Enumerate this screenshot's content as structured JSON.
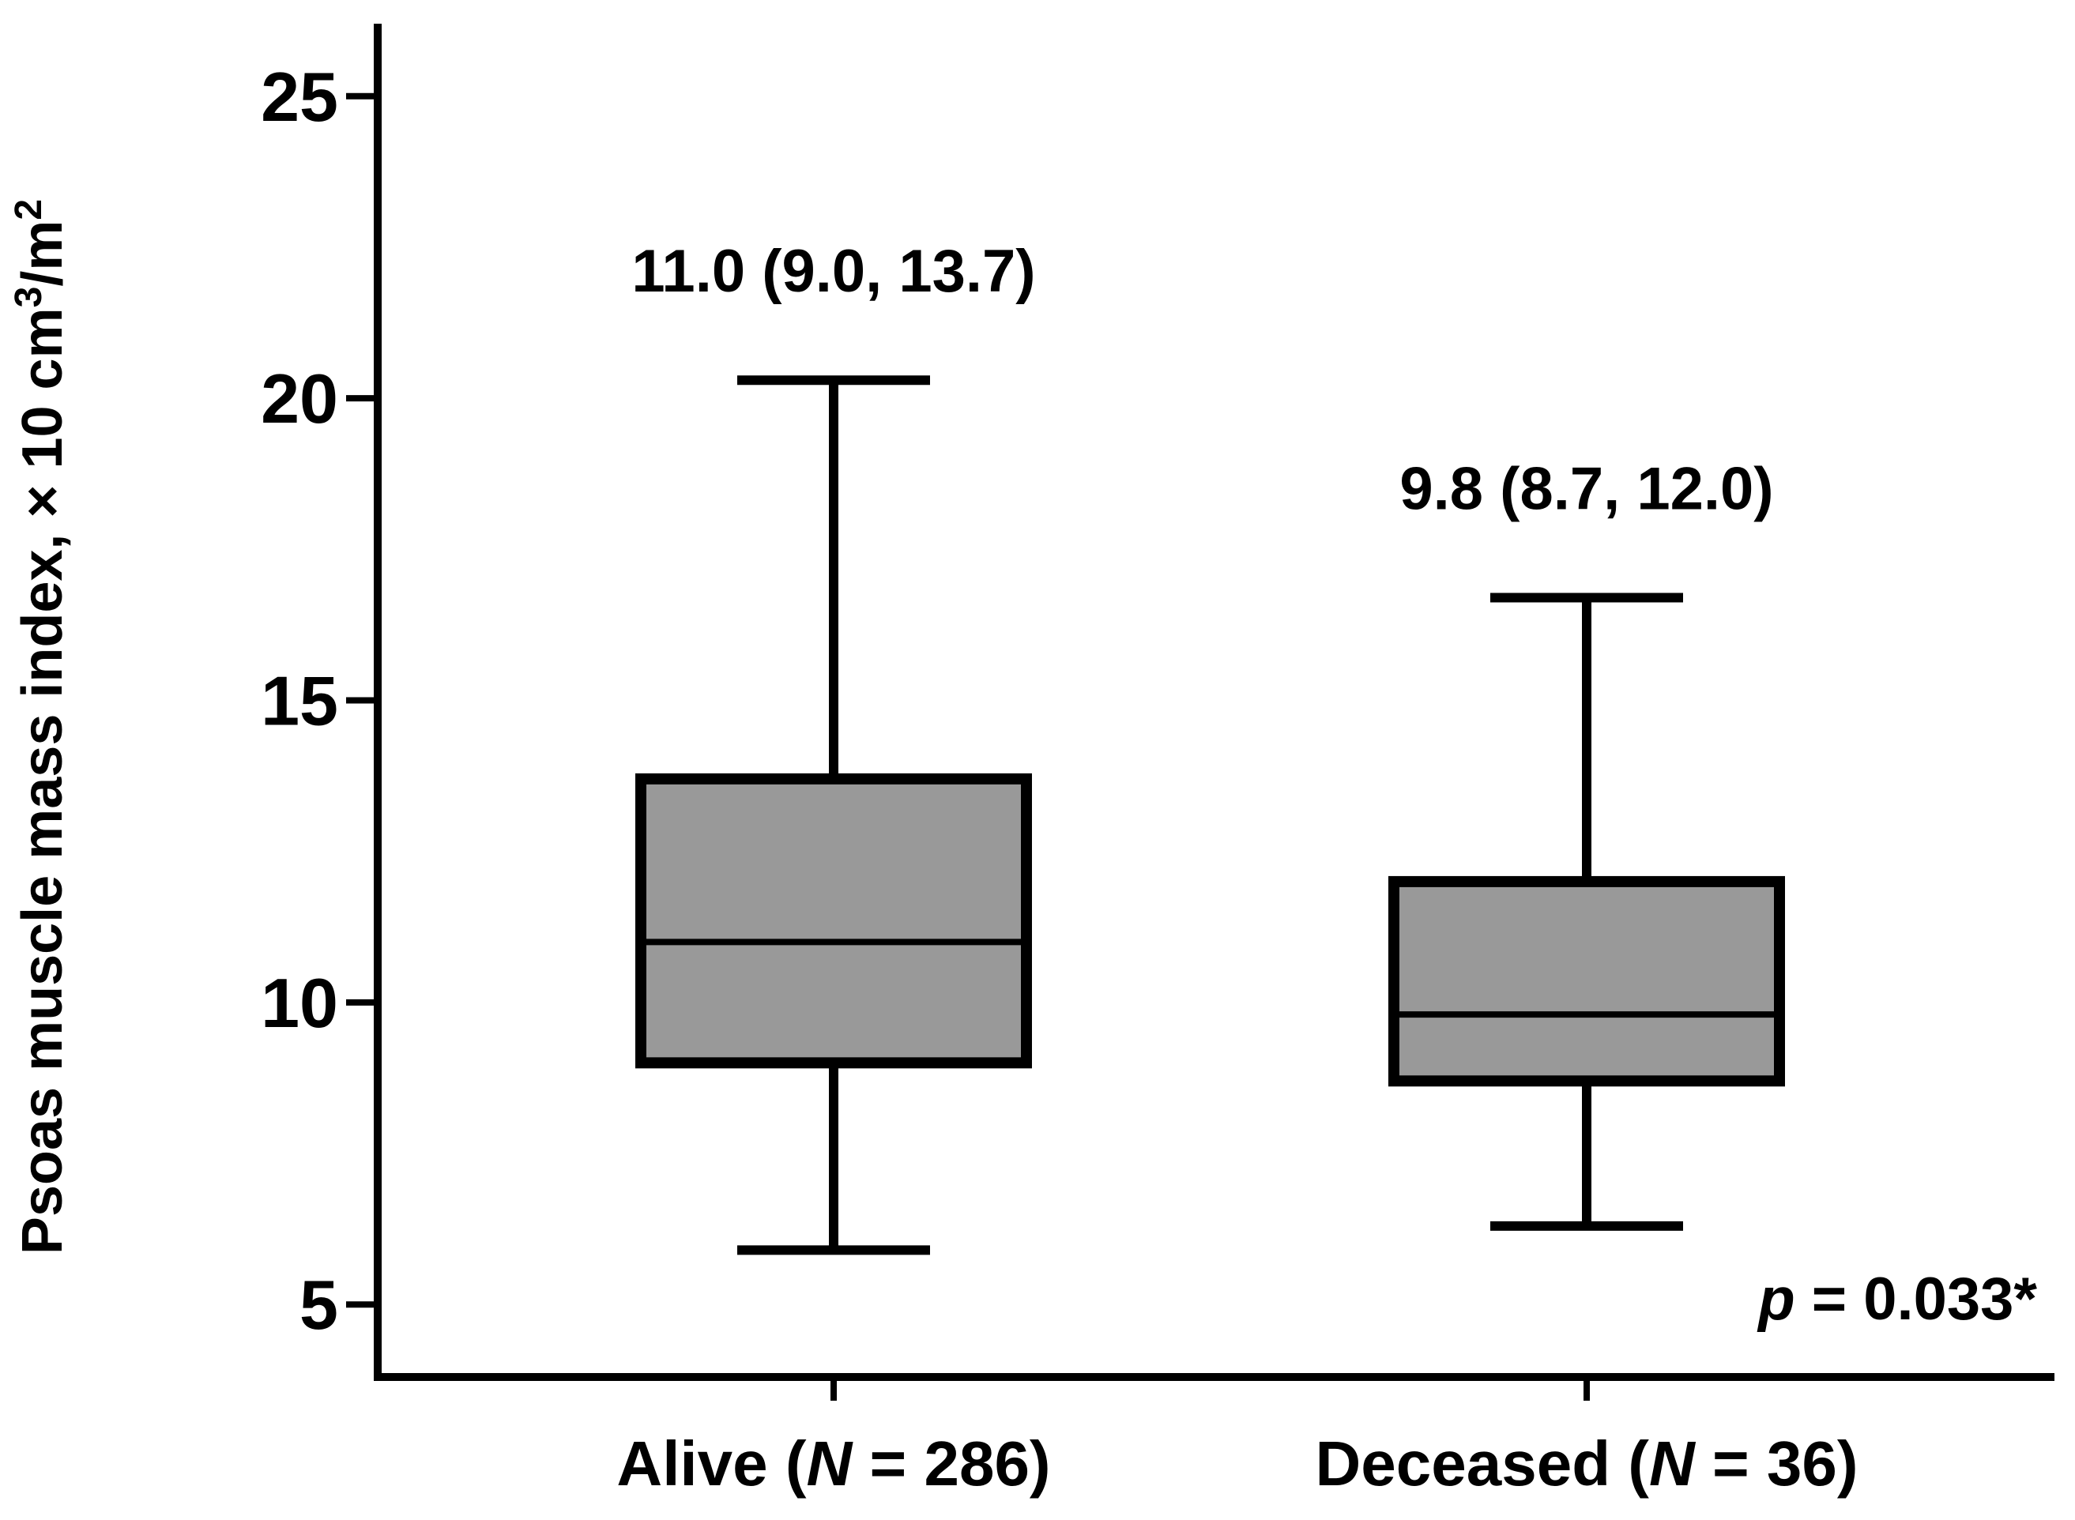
{
  "chart_data": {
    "type": "box",
    "title": "",
    "xlabel": "",
    "ylabel": "Psoas muscle mass index, × 10 cm³/m²",
    "ylabel_parts": {
      "main": "Psoas muscle mass index, × 10 cm",
      "sup1": "3",
      "mid": "/m",
      "sup2": "2"
    },
    "ylim": [
      3.8,
      26.2
    ],
    "yticks": [
      5,
      10,
      15,
      20,
      25
    ],
    "categories": [
      {
        "name": "Alive",
        "n_label": "N",
        "n_value": "286"
      },
      {
        "name": "Deceased",
        "n_label": "N",
        "n_value": "36"
      }
    ],
    "category_labels": [
      "Alive (N = 286)",
      "Deceased (N = 36)"
    ],
    "boxes": [
      {
        "category": "Alive",
        "whisker_low": 5.9,
        "q1": 9.0,
        "median": 11.0,
        "q3": 13.7,
        "whisker_high": 20.3,
        "annotation": "11.0 (9.0, 13.7)"
      },
      {
        "category": "Deceased",
        "whisker_low": 6.3,
        "q1": 8.7,
        "median": 9.8,
        "q3": 12.0,
        "whisker_high": 16.7,
        "annotation": "9.8 (8.7, 12.0)"
      }
    ],
    "p_value": {
      "symbol": "p",
      "text": " = 0.033*"
    },
    "box_fill": "#999999",
    "line_color": "#000000"
  }
}
